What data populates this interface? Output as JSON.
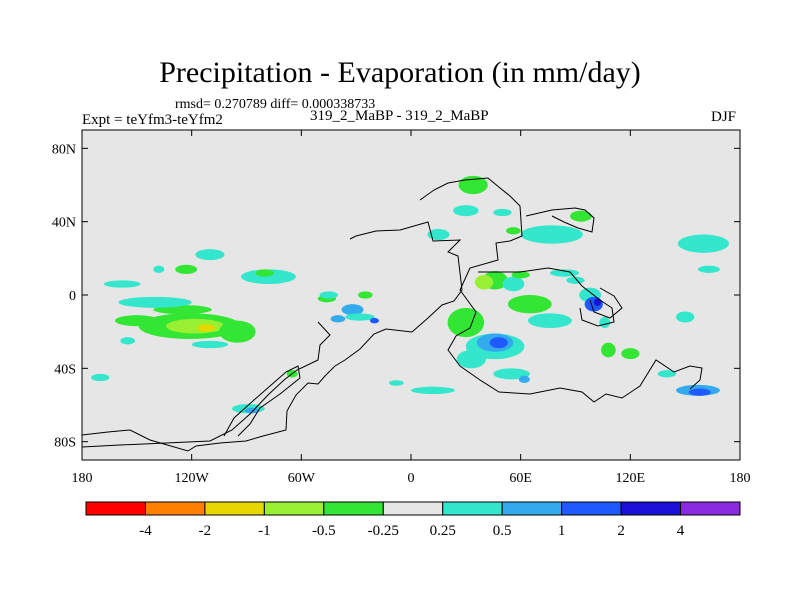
{
  "title": "Precipitation - Evaporation (in mm/day)",
  "stats_line": "rmsd= 0.270789 diff= 0.000338733",
  "left_label": "Expt = teYfm3-teYfm2",
  "center_label": "319_2_MaBP - 319_2_MaBP",
  "right_label": "DJF",
  "chart_data": {
    "type": "heatmap",
    "projection": "cylindrical-equidistant",
    "x_range": [
      -180,
      180
    ],
    "y_range": [
      -90,
      90
    ],
    "x_ticks": [
      {
        "value": -180,
        "label": "180"
      },
      {
        "value": -120,
        "label": "120W"
      },
      {
        "value": -60,
        "label": "60W"
      },
      {
        "value": 0,
        "label": "0"
      },
      {
        "value": 60,
        "label": "60E"
      },
      {
        "value": 120,
        "label": "120E"
      },
      {
        "value": 180,
        "label": "180"
      }
    ],
    "y_ticks": [
      {
        "value": 80,
        "label": "80N"
      },
      {
        "value": 40,
        "label": "40N"
      },
      {
        "value": 0,
        "label": "0"
      },
      {
        "value": -40,
        "label": "40S"
      },
      {
        "value": -80,
        "label": "80S"
      }
    ],
    "background_color": "#e6e6e6",
    "colorbar": {
      "levels": [
        "-4",
        "-2",
        "-1",
        "-0.5",
        "-0.25",
        "0.25",
        "0.5",
        "1",
        "2",
        "4"
      ],
      "colors": [
        "#ff0000",
        "#ff8000",
        "#e6d700",
        "#99f033",
        "#33e633",
        "#e6e6e6",
        "#33e6cc",
        "#33aaee",
        "#1e5aff",
        "#1a10d8",
        "#8a2be2"
      ]
    },
    "blobs": [
      {
        "lon": -121,
        "lat": -17,
        "rlon": 28,
        "rlat": 7,
        "c": 4
      },
      {
        "lon": -118,
        "lat": -17,
        "rlon": 16,
        "rlat": 4,
        "c": 3
      },
      {
        "lon": -112,
        "lat": -18,
        "rlon": 5,
        "rlat": 2,
        "c": 2
      },
      {
        "lon": -150,
        "lat": -14,
        "rlon": 12,
        "rlat": 3,
        "c": 4
      },
      {
        "lon": -125,
        "lat": -8,
        "rlon": 16,
        "rlat": 2.5,
        "c": 4
      },
      {
        "lon": -95,
        "lat": -20,
        "rlon": 10,
        "rlat": 6,
        "c": 4
      },
      {
        "lon": -140,
        "lat": -4,
        "rlon": 20,
        "rlat": 3,
        "c": 6
      },
      {
        "lon": -110,
        "lat": -27,
        "rlon": 10,
        "rlat": 2,
        "c": 6
      },
      {
        "lon": -155,
        "lat": -25,
        "rlon": 4,
        "rlat": 2,
        "c": 6
      },
      {
        "lon": -110,
        "lat": 22,
        "rlon": 8,
        "rlat": 3,
        "c": 6
      },
      {
        "lon": -123,
        "lat": 14,
        "rlon": 6,
        "rlat": 2.5,
        "c": 4
      },
      {
        "lon": -138,
        "lat": 14,
        "rlon": 3,
        "rlat": 2,
        "c": 6
      },
      {
        "lon": -78,
        "lat": 10,
        "rlon": 15,
        "rlat": 4,
        "c": 6
      },
      {
        "lon": -80,
        "lat": 12,
        "rlon": 5,
        "rlat": 2,
        "c": 4
      },
      {
        "lon": -158,
        "lat": 6,
        "rlon": 10,
        "rlat": 2,
        "c": 6
      },
      {
        "lon": -170,
        "lat": -45,
        "rlon": 5,
        "rlat": 2,
        "c": 6
      },
      {
        "lon": -89,
        "lat": -62,
        "rlon": 9,
        "rlat": 2.5,
        "c": 6
      },
      {
        "lon": -87,
        "lat": -63,
        "rlon": 4,
        "rlat": 1.5,
        "c": 7
      },
      {
        "lon": -65,
        "lat": -43,
        "rlon": 3,
        "rlat": 2,
        "c": 4
      },
      {
        "lon": -32,
        "lat": -8,
        "rlon": 6,
        "rlat": 3,
        "c": 7
      },
      {
        "lon": -28,
        "lat": -12,
        "rlon": 8,
        "rlat": 2,
        "c": 6
      },
      {
        "lon": -40,
        "lat": -13,
        "rlon": 4,
        "rlat": 2,
        "c": 7
      },
      {
        "lon": -20,
        "lat": -14,
        "rlon": 2.5,
        "rlat": 1.5,
        "c": 8
      },
      {
        "lon": -46,
        "lat": -2,
        "rlon": 5,
        "rlat": 2,
        "c": 4
      },
      {
        "lon": -45,
        "lat": 0,
        "rlon": 5,
        "rlat": 2,
        "c": 6
      },
      {
        "lon": -25,
        "lat": 0,
        "rlon": 4,
        "rlat": 2,
        "c": 4
      },
      {
        "lon": 30,
        "lat": -15,
        "rlon": 10,
        "rlat": 8,
        "c": 4
      },
      {
        "lon": 46,
        "lat": -28,
        "rlon": 16,
        "rlat": 7,
        "c": 6
      },
      {
        "lon": 46,
        "lat": -26,
        "rlon": 10,
        "rlat": 5,
        "c": 7
      },
      {
        "lon": 48,
        "lat": -26,
        "rlon": 5,
        "rlat": 3,
        "c": 8
      },
      {
        "lon": 33,
        "lat": -35,
        "rlon": 8,
        "rlat": 5,
        "c": 6
      },
      {
        "lon": 55,
        "lat": -43,
        "rlon": 10,
        "rlat": 3,
        "c": 6
      },
      {
        "lon": 62,
        "lat": -46,
        "rlon": 3,
        "rlat": 2,
        "c": 7
      },
      {
        "lon": 46,
        "lat": 8,
        "rlon": 7,
        "rlat": 5,
        "c": 4
      },
      {
        "lon": 40,
        "lat": 7,
        "rlon": 5,
        "rlat": 4,
        "c": 3
      },
      {
        "lon": 56,
        "lat": 6,
        "rlon": 6,
        "rlat": 4,
        "c": 6
      },
      {
        "lon": 65,
        "lat": -5,
        "rlon": 12,
        "rlat": 5,
        "c": 4
      },
      {
        "lon": 76,
        "lat": -14,
        "rlon": 12,
        "rlat": 4,
        "c": 6
      },
      {
        "lon": 98,
        "lat": 0,
        "rlon": 6,
        "rlat": 4,
        "c": 6
      },
      {
        "lon": 100,
        "lat": -5,
        "rlon": 5,
        "rlat": 4,
        "c": 8
      },
      {
        "lon": 102,
        "lat": -4,
        "rlon": 2,
        "rlat": 2,
        "c": 9
      },
      {
        "lon": 90,
        "lat": 8,
        "rlon": 5,
        "rlat": 2,
        "c": 6
      },
      {
        "lon": 77,
        "lat": 33,
        "rlon": 17,
        "rlat": 5,
        "c": 6
      },
      {
        "lon": 93,
        "lat": 43,
        "rlon": 6,
        "rlat": 3,
        "c": 4
      },
      {
        "lon": 34,
        "lat": 60,
        "rlon": 8,
        "rlat": 5,
        "c": 4
      },
      {
        "lon": 30,
        "lat": 46,
        "rlon": 7,
        "rlat": 3,
        "c": 6
      },
      {
        "lon": 50,
        "lat": 45,
        "rlon": 5,
        "rlat": 2,
        "c": 6
      },
      {
        "lon": 56,
        "lat": 35,
        "rlon": 4,
        "rlat": 2,
        "c": 4
      },
      {
        "lon": 15,
        "lat": 33,
        "rlon": 6,
        "rlat": 3,
        "c": 6
      },
      {
        "lon": 108,
        "lat": -30,
        "rlon": 4,
        "rlat": 4,
        "c": 4
      },
      {
        "lon": 106,
        "lat": -15,
        "rlon": 3,
        "rlat": 3,
        "c": 6
      },
      {
        "lon": 160,
        "lat": 28,
        "rlon": 14,
        "rlat": 5,
        "c": 6
      },
      {
        "lon": 163,
        "lat": 14,
        "rlon": 6,
        "rlat": 2,
        "c": 6
      },
      {
        "lon": 157,
        "lat": -52,
        "rlon": 12,
        "rlat": 3,
        "c": 7
      },
      {
        "lon": 158,
        "lat": -53,
        "rlon": 6,
        "rlat": 2,
        "c": 8
      },
      {
        "lon": 140,
        "lat": -43,
        "rlon": 5,
        "rlat": 2,
        "c": 6
      },
      {
        "lon": 120,
        "lat": -32,
        "rlon": 5,
        "rlat": 3,
        "c": 4
      },
      {
        "lon": 150,
        "lat": -12,
        "rlon": 5,
        "rlat": 3,
        "c": 6
      },
      {
        "lon": -8,
        "lat": -48,
        "rlon": 4,
        "rlat": 1.5,
        "c": 6
      },
      {
        "lon": 12,
        "lat": -52,
        "rlon": 12,
        "rlat": 2,
        "c": 6
      },
      {
        "lon": 60,
        "lat": 11,
        "rlon": 5,
        "rlat": 2,
        "c": 4
      },
      {
        "lon": 84,
        "lat": 12,
        "rlon": 8,
        "rlat": 2,
        "c": 6
      }
    ]
  }
}
